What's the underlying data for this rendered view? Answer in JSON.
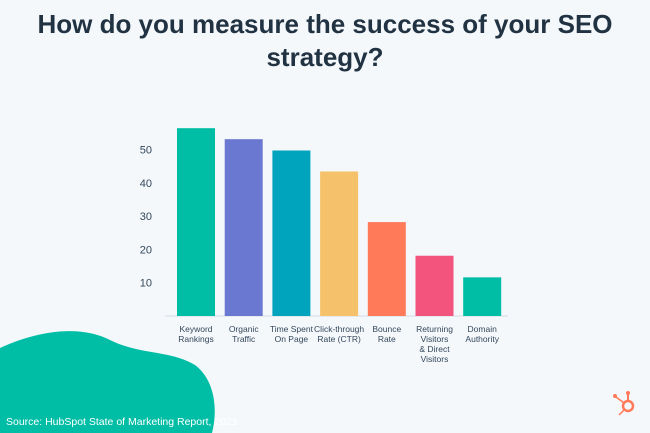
{
  "chart_data": {
    "type": "bar",
    "title": "How do you measure the success of your SEO strategy?",
    "categories": [
      "Keyword Rankings",
      "Organic Traffic",
      "Time Spent On Page",
      "Click-through Rate (CTR)",
      "Bounce Rate",
      "Returning Visitors & Direct Visitors",
      "Domain Authority"
    ],
    "category_lines": [
      [
        "Keyword",
        "Rankings"
      ],
      [
        "Organic",
        "Traffic"
      ],
      [
        "Time Spent",
        "On Page"
      ],
      [
        "Click-through",
        "Rate (CTR)"
      ],
      [
        "Bounce",
        "Rate"
      ],
      [
        "Returning",
        "Visitors",
        "& Direct",
        "Visitors"
      ],
      [
        "Domain",
        "Authority"
      ]
    ],
    "values": [
      56.4,
      53.1,
      49.7,
      43.4,
      28.2,
      18.1,
      11.6
    ],
    "colors": [
      "#00bda5",
      "#6a78d1",
      "#00a4bd",
      "#f5c26b",
      "#ff7a59",
      "#f2547d",
      "#00bda5"
    ],
    "yticks": [
      10,
      20,
      30,
      40,
      50
    ],
    "ylim": [
      0,
      60
    ],
    "grid": false,
    "legend": "none"
  },
  "source": "Source: HubSpot State of Marketing Report, 2021",
  "logo": "HubSpot sprocket",
  "colors": {
    "title": "#213343",
    "blob": "#00bda5",
    "logo": "#ff7a59",
    "background": "#f5f8fb"
  }
}
